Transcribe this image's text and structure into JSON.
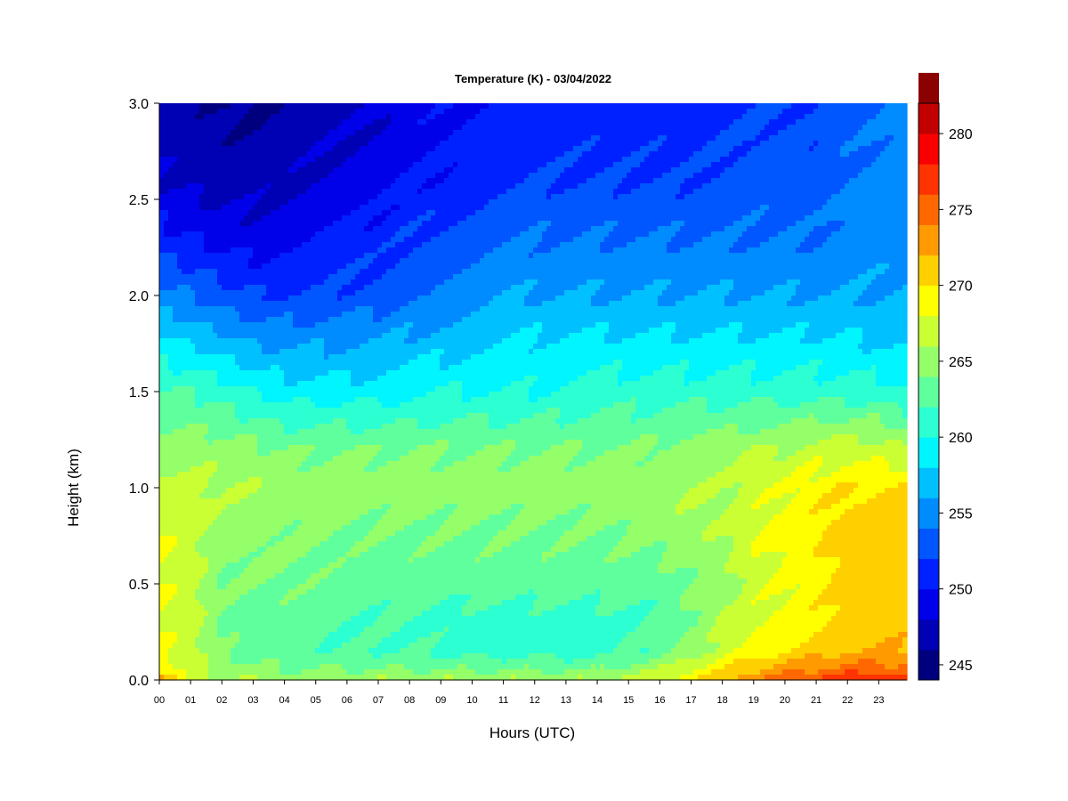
{
  "chart_data": {
    "type": "heatmap",
    "title": "Temperature (K) - 03/04/2022",
    "xlabel": "Hours (UTC)",
    "ylabel": "Height (km)",
    "x_ticks": [
      "00",
      "01",
      "02",
      "03",
      "04",
      "05",
      "06",
      "07",
      "08",
      "09",
      "10",
      "11",
      "12",
      "13",
      "14",
      "15",
      "16",
      "17",
      "18",
      "19",
      "20",
      "21",
      "22",
      "23"
    ],
    "y_ticks": [
      "0.0",
      "0.5",
      "1.0",
      "1.5",
      "2.0",
      "2.5",
      "3.0"
    ],
    "x_range": [
      0,
      23.9
    ],
    "y_range": [
      0,
      3.0
    ],
    "colorbar": {
      "range": [
        244,
        282
      ],
      "step": 2,
      "ticks": [
        245,
        250,
        255,
        260,
        265,
        270,
        275,
        280
      ],
      "colors": [
        "#00007f",
        "#0000b4",
        "#0000e9",
        "#0021ff",
        "#0056ff",
        "#008bff",
        "#00c0ff",
        "#00f5ff",
        "#2cffd2",
        "#60ff9e",
        "#95ff69",
        "#caff34",
        "#ffff00",
        "#ffd000",
        "#ff9b00",
        "#ff6800",
        "#ff3300",
        "#f90000",
        "#c20000",
        "#8b0000"
      ]
    },
    "grid": false,
    "hours": [
      0,
      1,
      2,
      3,
      4,
      5,
      6,
      7,
      8,
      9,
      10,
      11,
      12,
      13,
      14,
      15,
      16,
      17,
      18,
      19,
      20,
      21,
      22,
      23,
      23.9
    ],
    "heights_km": [
      0.0,
      0.05,
      0.15,
      0.3,
      0.5,
      0.8,
      1.0,
      1.2,
      1.5,
      1.8,
      2.0,
      2.3,
      2.6,
      3.0
    ],
    "temperature_K": [
      [
        274,
        267,
        266,
        266,
        265.5,
        265.5,
        266,
        266,
        266,
        266,
        266,
        266,
        266,
        266,
        266,
        267,
        268,
        270,
        272,
        274,
        276,
        277,
        278,
        278,
        277
      ],
      [
        270,
        267,
        265,
        264.5,
        264,
        264,
        264,
        264,
        264,
        264,
        264,
        264,
        264,
        264,
        264,
        265,
        266,
        268,
        270,
        272,
        273,
        274,
        275,
        275,
        275
      ],
      [
        268,
        267,
        264,
        263,
        263,
        262.5,
        262,
        262,
        262,
        261.5,
        261,
        261,
        261,
        261,
        261,
        262,
        263,
        265,
        267,
        269,
        270,
        271,
        272,
        272,
        272
      ],
      [
        268,
        267,
        264,
        263,
        263,
        262.5,
        262,
        262,
        262,
        261.5,
        261,
        261,
        261,
        261,
        261,
        261.5,
        262,
        264,
        266,
        268,
        269,
        270,
        271,
        271,
        271
      ],
      [
        268,
        267,
        264,
        264,
        264,
        263.5,
        263,
        263,
        263,
        263,
        263,
        263,
        263,
        263,
        263,
        263,
        263,
        264,
        265,
        267,
        268,
        269,
        271,
        271,
        271
      ],
      [
        268,
        267,
        265,
        265,
        264.5,
        264.5,
        264,
        264,
        264,
        264,
        264,
        264,
        264,
        264,
        264,
        264.5,
        265,
        265.5,
        266,
        268,
        269,
        270,
        271,
        271,
        271
      ],
      [
        267,
        267,
        266,
        266,
        265,
        265,
        265,
        265,
        265,
        265,
        265,
        265,
        265,
        265,
        265,
        265,
        265.5,
        266,
        266,
        267,
        268,
        269,
        270,
        270,
        270
      ],
      [
        265,
        265,
        265,
        264.5,
        264,
        264,
        264,
        264,
        264,
        264,
        264,
        264,
        264,
        264,
        264,
        264,
        264.5,
        265,
        265,
        266,
        266,
        267,
        267,
        267,
        266
      ],
      [
        262,
        262,
        261,
        260,
        259,
        259,
        259,
        259,
        259.5,
        260,
        260,
        260,
        260,
        260.5,
        261,
        261,
        261,
        261,
        261,
        261,
        261,
        261,
        261,
        261,
        260
      ],
      [
        258,
        257,
        256,
        255,
        255,
        255,
        255,
        255.5,
        256,
        256.5,
        257,
        257.5,
        258,
        258,
        258,
        258,
        258,
        258,
        258,
        258,
        258,
        258,
        258,
        257,
        257
      ],
      [
        255,
        254,
        253,
        252,
        252,
        252,
        252.5,
        253,
        254,
        254.5,
        255,
        256,
        256,
        256,
        256,
        256,
        256,
        256,
        256,
        256,
        256,
        256,
        256,
        256,
        256
      ],
      [
        251,
        250,
        249,
        249,
        249.5,
        250,
        250.5,
        251,
        252,
        252.5,
        253,
        253.5,
        254,
        254,
        254,
        254,
        254,
        254,
        254,
        254,
        254,
        254,
        255,
        255,
        255
      ],
      [
        248,
        247.5,
        247,
        247,
        247.5,
        248,
        248.5,
        249,
        250,
        250.5,
        251,
        251.5,
        252,
        252,
        252,
        252,
        252,
        252,
        252.5,
        253,
        253,
        253,
        254,
        254.5,
        255
      ],
      [
        247,
        246.5,
        246,
        245.5,
        246.5,
        247,
        247.5,
        248,
        249,
        249.5,
        250,
        250.5,
        251,
        251,
        251,
        251,
        251,
        251,
        251.5,
        252,
        252,
        252,
        253,
        254,
        255
      ]
    ]
  }
}
